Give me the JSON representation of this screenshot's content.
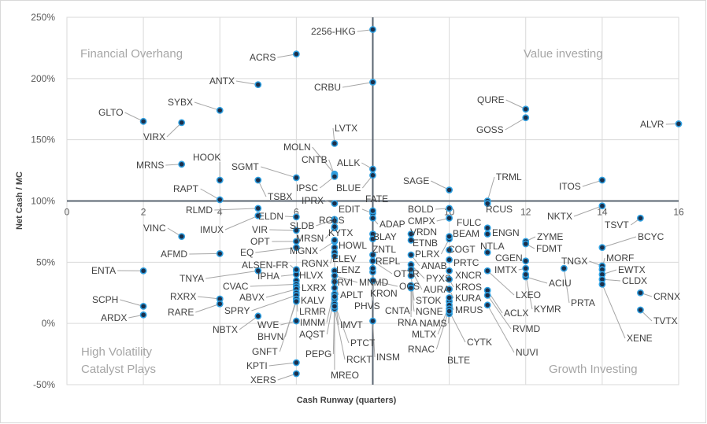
{
  "chart_data": {
    "type": "scatter",
    "xlabel": "Cash Runway (quarters)",
    "ylabel": "Net Cash / MC",
    "xlim": [
      0,
      16
    ],
    "ylim": [
      -50,
      250
    ],
    "x_ticks": [
      "0",
      "2",
      "4",
      "6",
      "8",
      "10",
      "12",
      "14",
      "16"
    ],
    "y_ticks": [
      "250%",
      "200%",
      "150%",
      "100%",
      "50%",
      "0%",
      "-50%"
    ],
    "grid": true,
    "axis_cross": {
      "x": 8,
      "y": 100
    },
    "quadrants": {
      "top_left": "Financial Overhang",
      "top_right": "Value investing",
      "bottom_left_1": "High Volatility",
      "bottom_left_2": "Catalyst Plays",
      "bottom_right": "Growth Investing"
    },
    "colors": {
      "marker_fill": "#1b2f4a",
      "marker_edge": "#2f9fe0",
      "axis": "#5a6470",
      "grid": "#d9d9d9"
    },
    "points": [
      {
        "t": "2256-HKG",
        "x": 8,
        "y": 240
      },
      {
        "t": "ACRS",
        "x": 6,
        "y": 220
      },
      {
        "t": "ANTX",
        "x": 5,
        "y": 195
      },
      {
        "t": "CRBU",
        "x": 8,
        "y": 197
      },
      {
        "t": "SYBX",
        "x": 4,
        "y": 174
      },
      {
        "t": "GLTO",
        "x": 2,
        "y": 165
      },
      {
        "t": "VIRX",
        "x": 3,
        "y": 164
      },
      {
        "t": "LVTX",
        "x": 7,
        "y": 147
      },
      {
        "t": "MOLN",
        "x": 7,
        "y": 122
      },
      {
        "t": "CNTB",
        "x": 7,
        "y": 121
      },
      {
        "t": "ALLK",
        "x": 8,
        "y": 126
      },
      {
        "t": "MRNS",
        "x": 3,
        "y": 130
      },
      {
        "t": "HOOK",
        "x": 4,
        "y": 117
      },
      {
        "t": "SGMT",
        "x": 6,
        "y": 119
      },
      {
        "t": "TSBX",
        "x": 5,
        "y": 117
      },
      {
        "t": "IPSC",
        "x": 7,
        "y": 120
      },
      {
        "t": "BLUE",
        "x": 8,
        "y": 121
      },
      {
        "t": "RAPT",
        "x": 4,
        "y": 101
      },
      {
        "t": "IPRX",
        "x": 7,
        "y": 98
      },
      {
        "t": "QURE",
        "x": 12,
        "y": 175
      },
      {
        "t": "GOSS",
        "x": 12,
        "y": 168
      },
      {
        "t": "ALVR",
        "x": 16,
        "y": 163
      },
      {
        "t": "SAGE",
        "x": 10,
        "y": 109
      },
      {
        "t": "TRML",
        "x": 11,
        "y": 100
      },
      {
        "t": "ITOS",
        "x": 14,
        "y": 117
      },
      {
        "t": "NKTX",
        "x": 14,
        "y": 96
      },
      {
        "t": "RCUS",
        "x": 11,
        "y": 98
      },
      {
        "t": "TSVT",
        "x": 15,
        "y": 86
      },
      {
        "t": "BCYC",
        "x": 14,
        "y": 62
      },
      {
        "t": "ZYME",
        "x": 12,
        "y": 67
      },
      {
        "t": "FDMT",
        "x": 12,
        "y": 65
      },
      {
        "t": "FULC",
        "x": 11,
        "y": 78
      },
      {
        "t": "ENGN",
        "x": 11,
        "y": 73
      },
      {
        "t": "NTLA",
        "x": 11,
        "y": 58
      },
      {
        "t": "CGEN",
        "x": 12,
        "y": 51
      },
      {
        "t": "IMTX",
        "x": 12,
        "y": 45
      },
      {
        "t": "LXEO",
        "x": 11,
        "y": 43
      },
      {
        "t": "ACIU",
        "x": 12,
        "y": 38
      },
      {
        "t": "KYMR",
        "x": 12,
        "y": 40
      },
      {
        "t": "ACLX",
        "x": 11,
        "y": 27
      },
      {
        "t": "RVMD",
        "x": 11,
        "y": 23
      },
      {
        "t": "NUVI",
        "x": 11,
        "y": 15
      },
      {
        "t": "TNGX",
        "x": 14,
        "y": 47
      },
      {
        "t": "PRTA",
        "x": 13,
        "y": 45
      },
      {
        "t": "MORF",
        "x": 14,
        "y": 44
      },
      {
        "t": "EWTX",
        "x": 14,
        "y": 40
      },
      {
        "t": "CLDX",
        "x": 14,
        "y": 36
      },
      {
        "t": "XENE",
        "x": 14,
        "y": 32
      },
      {
        "t": "CRNX",
        "x": 15,
        "y": 25
      },
      {
        "t": "TVTX",
        "x": 15,
        "y": 11
      },
      {
        "t": "VINC",
        "x": 3,
        "y": 71
      },
      {
        "t": "AFMD",
        "x": 4,
        "y": 57
      },
      {
        "t": "ENTA",
        "x": 2,
        "y": 43
      },
      {
        "t": "SCPH",
        "x": 2,
        "y": 14
      },
      {
        "t": "ARDX",
        "x": 2,
        "y": 7
      },
      {
        "t": "RXRX",
        "x": 4,
        "y": 20
      },
      {
        "t": "RARE",
        "x": 4,
        "y": 16
      },
      {
        "t": "RLMD",
        "x": 5,
        "y": 94
      },
      {
        "t": "IMUX",
        "x": 5,
        "y": 88
      },
      {
        "t": "ELDN",
        "x": 6,
        "y": 87
      },
      {
        "t": "VIR",
        "x": 6,
        "y": 76
      },
      {
        "t": "OPT",
        "x": 6,
        "y": 67
      },
      {
        "t": "EQ",
        "x": 6,
        "y": 62
      },
      {
        "t": "ALSEN-FR",
        "x": 6,
        "y": 43
      },
      {
        "t": "TNYA",
        "x": 5,
        "y": 43
      },
      {
        "t": "IPHA",
        "x": 6,
        "y": 40
      },
      {
        "t": "HLVX",
        "x": 6,
        "y": 44
      },
      {
        "t": "LXRX",
        "x": 6,
        "y": 35
      },
      {
        "t": "CVAC",
        "x": 6,
        "y": 32
      },
      {
        "t": "KALV",
        "x": 6,
        "y": 30
      },
      {
        "t": "ABVX",
        "x": 6,
        "y": 28
      },
      {
        "t": "LRMR",
        "x": 6,
        "y": 25
      },
      {
        "t": "SPRY",
        "x": 6,
        "y": 23
      },
      {
        "t": "NBTX",
        "x": 5,
        "y": 6
      },
      {
        "t": "WVE",
        "x": 6,
        "y": 2
      },
      {
        "t": "BHVN",
        "x": 6,
        "y": 20
      },
      {
        "t": "GNFT",
        "x": 6,
        "y": 18
      },
      {
        "t": "KPTI",
        "x": 6,
        "y": -32
      },
      {
        "t": "XERS",
        "x": 6,
        "y": -41
      },
      {
        "t": "SLDB",
        "x": 7,
        "y": 85
      },
      {
        "t": "RGLS",
        "x": 7,
        "y": 84
      },
      {
        "t": "MRSN",
        "x": 7,
        "y": 78
      },
      {
        "t": "KYTX",
        "x": 7,
        "y": 79
      },
      {
        "t": "MGNX",
        "x": 7,
        "y": 67
      },
      {
        "t": "HOWL",
        "x": 7,
        "y": 68
      },
      {
        "t": "RGNX",
        "x": 7,
        "y": 62
      },
      {
        "t": "ELEV",
        "x": 7,
        "y": 58
      },
      {
        "t": "LENZ",
        "x": 7,
        "y": 55
      },
      {
        "t": "TRVI",
        "x": 7,
        "y": 43
      },
      {
        "t": "MNMD",
        "x": 7,
        "y": 39
      },
      {
        "t": "APLT",
        "x": 7,
        "y": 34
      },
      {
        "t": "IMNM",
        "x": 7,
        "y": 29
      },
      {
        "t": "AQST",
        "x": 7,
        "y": 24
      },
      {
        "t": "PEPG",
        "x": 7,
        "y": 20
      },
      {
        "t": "PTCT",
        "x": 7,
        "y": 16
      },
      {
        "t": "RCKT",
        "x": 7,
        "y": 12
      },
      {
        "t": "MREO",
        "x": 7,
        "y": 14
      },
      {
        "t": "IMVT",
        "x": 7,
        "y": 22
      },
      {
        "t": "PHVS",
        "x": 8,
        "y": 42
      },
      {
        "t": "EDIT",
        "x": 8,
        "y": 90
      },
      {
        "t": "FATE",
        "x": 8,
        "y": 92
      },
      {
        "t": "ADAP",
        "x": 8,
        "y": 86
      },
      {
        "t": "BLAY",
        "x": 8,
        "y": 73
      },
      {
        "t": "ZNTL",
        "x": 8,
        "y": 69
      },
      {
        "t": "REPL",
        "x": 8,
        "y": 56
      },
      {
        "t": "OTTR",
        "x": 8,
        "y": 51
      },
      {
        "t": "KRON",
        "x": 8,
        "y": 45
      },
      {
        "t": "OCS",
        "x": 8,
        "y": 35
      },
      {
        "t": "CNTA",
        "x": 9,
        "y": 29
      },
      {
        "t": "INSM",
        "x": 8,
        "y": 2
      },
      {
        "t": "BOLD",
        "x": 10,
        "y": 94
      },
      {
        "t": "CMPX",
        "x": 10,
        "y": 86
      },
      {
        "t": "VRDN",
        "x": 9,
        "y": 73
      },
      {
        "t": "ETNB",
        "x": 9,
        "y": 68
      },
      {
        "t": "PLRX",
        "x": 10,
        "y": 69
      },
      {
        "t": "ANAB",
        "x": 9,
        "y": 56
      },
      {
        "t": "PYXS",
        "x": 9,
        "y": 48
      },
      {
        "t": "AURA",
        "x": 9,
        "y": 44
      },
      {
        "t": "STOK",
        "x": 9,
        "y": 39
      },
      {
        "t": "NGNE",
        "x": 9,
        "y": 31
      },
      {
        "t": "RNA",
        "x": 9,
        "y": 29
      },
      {
        "t": "NAMS",
        "x": 10,
        "y": 18
      },
      {
        "t": "MLTX",
        "x": 10,
        "y": 15
      },
      {
        "t": "RNAC",
        "x": 10,
        "y": 12
      },
      {
        "t": "BLTE",
        "x": 10,
        "y": 8
      },
      {
        "t": "CYTK",
        "x": 10,
        "y": 10
      },
      {
        "t": "BEAM",
        "x": 10,
        "y": 71
      },
      {
        "t": "COGT",
        "x": 10,
        "y": 60
      },
      {
        "t": "PRTC",
        "x": 10,
        "y": 52
      },
      {
        "t": "XNCR",
        "x": 10,
        "y": 43
      },
      {
        "t": "KROS",
        "x": 10,
        "y": 36
      },
      {
        "t": "KURA",
        "x": 10,
        "y": 28
      },
      {
        "t": "MRUS",
        "x": 10,
        "y": 21
      }
    ]
  }
}
